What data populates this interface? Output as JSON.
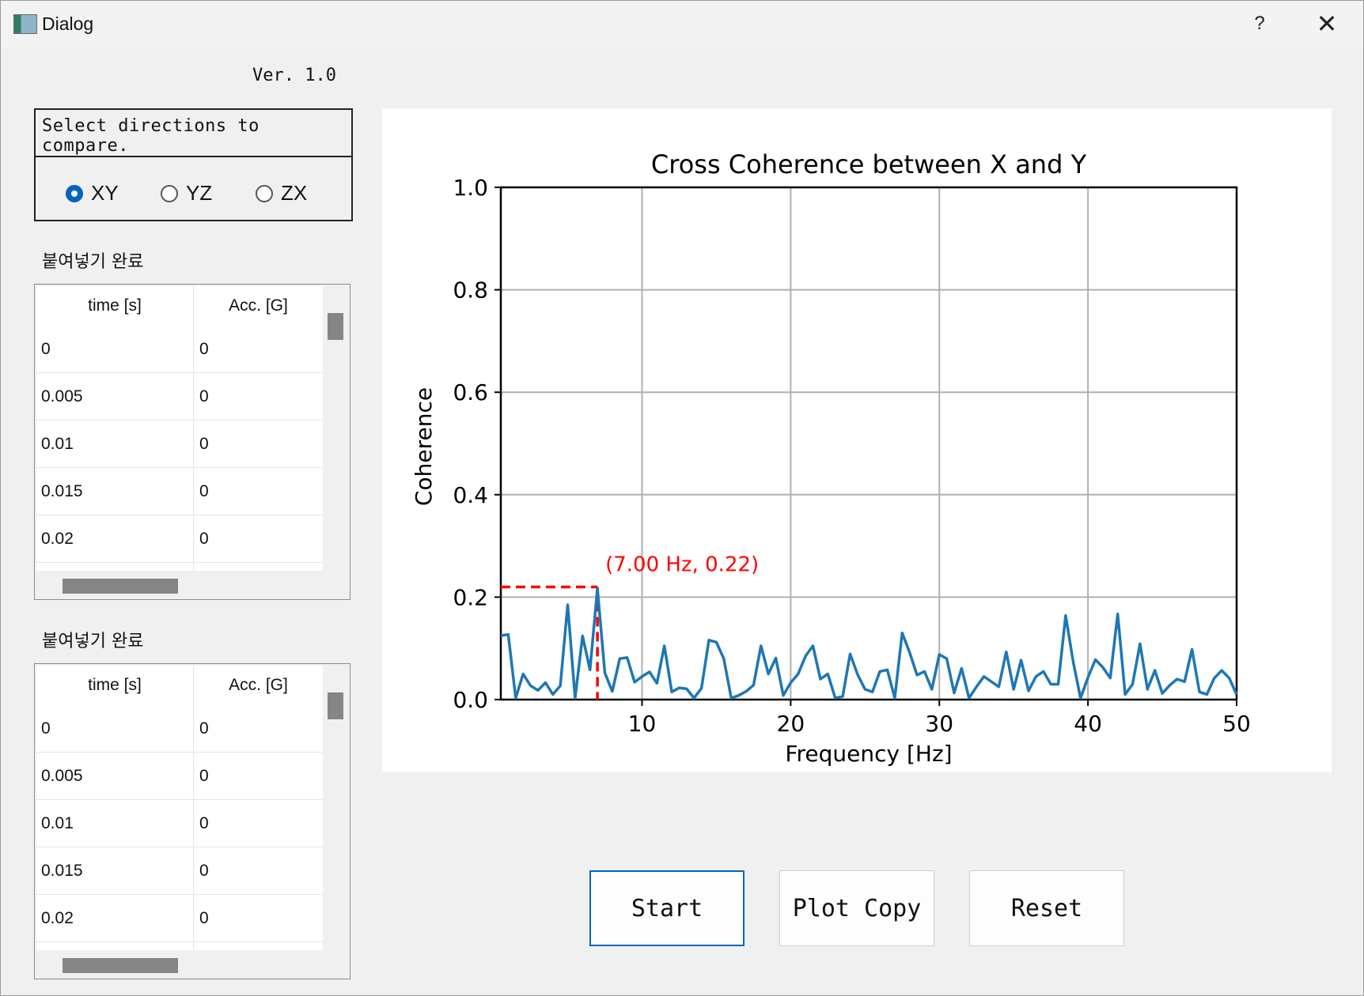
{
  "window": {
    "title": "Dialog",
    "help_glyph": "?",
    "close_glyph": "✕"
  },
  "version": "Ver. 1.0",
  "directions": {
    "prompt": "Select directions to compare.",
    "options": [
      {
        "label": "XY",
        "selected": true
      },
      {
        "label": "YZ",
        "selected": false
      },
      {
        "label": "ZX",
        "selected": false
      }
    ]
  },
  "tables": [
    {
      "label": "붙여넣기 완료",
      "headers": [
        "time [s]",
        "Acc. [G]"
      ],
      "rows": [
        [
          "0",
          "0"
        ],
        [
          "0.005",
          "0"
        ],
        [
          "0.01",
          "0"
        ],
        [
          "0.015",
          "0"
        ],
        [
          "0.02",
          "0"
        ]
      ]
    },
    {
      "label": "붙여넣기 완료",
      "headers": [
        "time [s]",
        "Acc. [G]"
      ],
      "rows": [
        [
          "0",
          "0"
        ],
        [
          "0.005",
          "0"
        ],
        [
          "0.01",
          "0"
        ],
        [
          "0.015",
          "0"
        ],
        [
          "0.02",
          "0"
        ]
      ]
    }
  ],
  "buttons": {
    "start": "Start",
    "plot_copy": "Plot Copy",
    "reset": "Reset"
  },
  "chart_data": {
    "type": "line",
    "title": "Cross Coherence between X and Y",
    "xlabel": "Frequency [Hz]",
    "ylabel": "Coherence",
    "xlim": [
      0.5,
      50
    ],
    "ylim": [
      0,
      1.0
    ],
    "xticks": [
      10,
      20,
      30,
      40,
      50
    ],
    "yticks": [
      0.0,
      0.2,
      0.4,
      0.6,
      0.8,
      1.0
    ],
    "grid": true,
    "line_color": "#1f77b4",
    "annotation": {
      "x": 7.0,
      "y": 0.22,
      "text": "(7.00 Hz, 0.22)",
      "color": "#ff0000"
    },
    "x": [
      0.5,
      1.0,
      1.5,
      2.0,
      2.5,
      3.0,
      3.5,
      4.0,
      4.5,
      5.0,
      5.5,
      6.0,
      6.5,
      7.0,
      7.5,
      8.0,
      8.5,
      9.0,
      9.5,
      10.0,
      10.5,
      11.0,
      11.5,
      12.0,
      12.5,
      13.0,
      13.5,
      14.0,
      14.5,
      15.0,
      15.5,
      16.0,
      16.5,
      17.0,
      17.5,
      18.0,
      18.5,
      19.0,
      19.5,
      20.0,
      20.5,
      21.0,
      21.5,
      22.0,
      22.5,
      23.0,
      23.5,
      24.0,
      24.5,
      25.0,
      25.5,
      26.0,
      26.5,
      27.0,
      27.5,
      28.0,
      28.5,
      29.0,
      29.5,
      30.0,
      30.5,
      31.0,
      31.5,
      32.0,
      32.5,
      33.0,
      33.5,
      34.0,
      34.5,
      35.0,
      35.5,
      36.0,
      36.5,
      37.0,
      37.5,
      38.0,
      38.5,
      39.0,
      39.5,
      40.0,
      40.5,
      41.0,
      41.5,
      42.0,
      42.5,
      43.0,
      43.5,
      44.0,
      44.5,
      45.0,
      45.5,
      46.0,
      46.5,
      47.0,
      47.5,
      48.0,
      48.5,
      49.0,
      49.5,
      50.0
    ],
    "y": [
      0.125,
      0.127,
      0.003,
      0.05,
      0.027,
      0.018,
      0.033,
      0.01,
      0.027,
      0.185,
      0.003,
      0.124,
      0.058,
      0.217,
      0.052,
      0.016,
      0.08,
      0.082,
      0.034,
      0.045,
      0.054,
      0.032,
      0.105,
      0.015,
      0.023,
      0.021,
      0.003,
      0.022,
      0.116,
      0.112,
      0.08,
      0.003,
      0.008,
      0.016,
      0.028,
      0.105,
      0.05,
      0.081,
      0.008,
      0.033,
      0.05,
      0.085,
      0.105,
      0.04,
      0.05,
      0.003,
      0.006,
      0.089,
      0.049,
      0.02,
      0.015,
      0.055,
      0.058,
      0.003,
      0.13,
      0.092,
      0.048,
      0.055,
      0.02,
      0.088,
      0.08,
      0.013,
      0.061,
      0.003,
      0.025,
      0.045,
      0.035,
      0.025,
      0.093,
      0.02,
      0.077,
      0.017,
      0.045,
      0.055,
      0.03,
      0.03,
      0.164,
      0.075,
      0.003,
      0.043,
      0.078,
      0.063,
      0.042,
      0.167,
      0.01,
      0.03,
      0.109,
      0.02,
      0.057,
      0.012,
      0.028,
      0.04,
      0.035,
      0.098,
      0.015,
      0.01,
      0.042,
      0.057,
      0.042,
      0.01
    ]
  }
}
